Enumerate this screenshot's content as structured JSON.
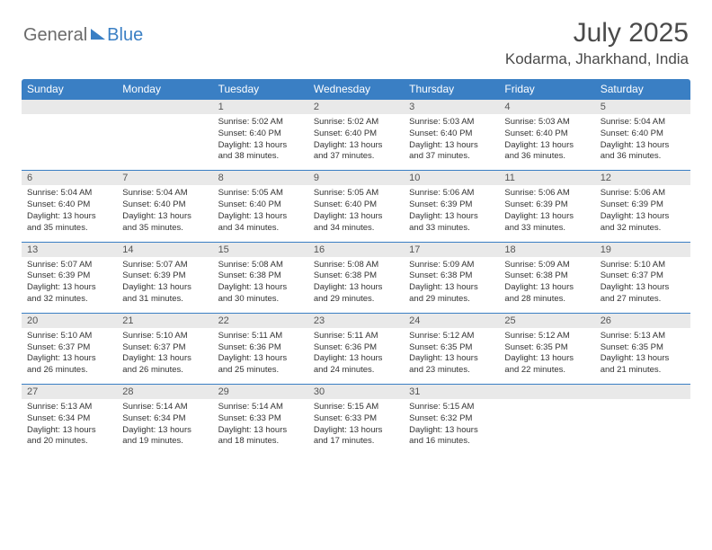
{
  "brand": {
    "part1": "General",
    "part2": "Blue"
  },
  "title": "July 2025",
  "location": "Kodarma, Jharkhand, India",
  "colors": {
    "header_bg": "#3a7fc4",
    "daynum_bg": "#e9e9e9",
    "border": "#3a7fc4",
    "text": "#333333",
    "title_text": "#4a4a4a",
    "logo_gray": "#6b6b6b"
  },
  "weekdays": [
    "Sunday",
    "Monday",
    "Tuesday",
    "Wednesday",
    "Thursday",
    "Friday",
    "Saturday"
  ],
  "weeks": [
    [
      null,
      null,
      {
        "d": "1",
        "sr": "5:02 AM",
        "ss": "6:40 PM",
        "dl": "13 hours and 38 minutes."
      },
      {
        "d": "2",
        "sr": "5:02 AM",
        "ss": "6:40 PM",
        "dl": "13 hours and 37 minutes."
      },
      {
        "d": "3",
        "sr": "5:03 AM",
        "ss": "6:40 PM",
        "dl": "13 hours and 37 minutes."
      },
      {
        "d": "4",
        "sr": "5:03 AM",
        "ss": "6:40 PM",
        "dl": "13 hours and 36 minutes."
      },
      {
        "d": "5",
        "sr": "5:04 AM",
        "ss": "6:40 PM",
        "dl": "13 hours and 36 minutes."
      }
    ],
    [
      {
        "d": "6",
        "sr": "5:04 AM",
        "ss": "6:40 PM",
        "dl": "13 hours and 35 minutes."
      },
      {
        "d": "7",
        "sr": "5:04 AM",
        "ss": "6:40 PM",
        "dl": "13 hours and 35 minutes."
      },
      {
        "d": "8",
        "sr": "5:05 AM",
        "ss": "6:40 PM",
        "dl": "13 hours and 34 minutes."
      },
      {
        "d": "9",
        "sr": "5:05 AM",
        "ss": "6:40 PM",
        "dl": "13 hours and 34 minutes."
      },
      {
        "d": "10",
        "sr": "5:06 AM",
        "ss": "6:39 PM",
        "dl": "13 hours and 33 minutes."
      },
      {
        "d": "11",
        "sr": "5:06 AM",
        "ss": "6:39 PM",
        "dl": "13 hours and 33 minutes."
      },
      {
        "d": "12",
        "sr": "5:06 AM",
        "ss": "6:39 PM",
        "dl": "13 hours and 32 minutes."
      }
    ],
    [
      {
        "d": "13",
        "sr": "5:07 AM",
        "ss": "6:39 PM",
        "dl": "13 hours and 32 minutes."
      },
      {
        "d": "14",
        "sr": "5:07 AM",
        "ss": "6:39 PM",
        "dl": "13 hours and 31 minutes."
      },
      {
        "d": "15",
        "sr": "5:08 AM",
        "ss": "6:38 PM",
        "dl": "13 hours and 30 minutes."
      },
      {
        "d": "16",
        "sr": "5:08 AM",
        "ss": "6:38 PM",
        "dl": "13 hours and 29 minutes."
      },
      {
        "d": "17",
        "sr": "5:09 AM",
        "ss": "6:38 PM",
        "dl": "13 hours and 29 minutes."
      },
      {
        "d": "18",
        "sr": "5:09 AM",
        "ss": "6:38 PM",
        "dl": "13 hours and 28 minutes."
      },
      {
        "d": "19",
        "sr": "5:10 AM",
        "ss": "6:37 PM",
        "dl": "13 hours and 27 minutes."
      }
    ],
    [
      {
        "d": "20",
        "sr": "5:10 AM",
        "ss": "6:37 PM",
        "dl": "13 hours and 26 minutes."
      },
      {
        "d": "21",
        "sr": "5:10 AM",
        "ss": "6:37 PM",
        "dl": "13 hours and 26 minutes."
      },
      {
        "d": "22",
        "sr": "5:11 AM",
        "ss": "6:36 PM",
        "dl": "13 hours and 25 minutes."
      },
      {
        "d": "23",
        "sr": "5:11 AM",
        "ss": "6:36 PM",
        "dl": "13 hours and 24 minutes."
      },
      {
        "d": "24",
        "sr": "5:12 AM",
        "ss": "6:35 PM",
        "dl": "13 hours and 23 minutes."
      },
      {
        "d": "25",
        "sr": "5:12 AM",
        "ss": "6:35 PM",
        "dl": "13 hours and 22 minutes."
      },
      {
        "d": "26",
        "sr": "5:13 AM",
        "ss": "6:35 PM",
        "dl": "13 hours and 21 minutes."
      }
    ],
    [
      {
        "d": "27",
        "sr": "5:13 AM",
        "ss": "6:34 PM",
        "dl": "13 hours and 20 minutes."
      },
      {
        "d": "28",
        "sr": "5:14 AM",
        "ss": "6:34 PM",
        "dl": "13 hours and 19 minutes."
      },
      {
        "d": "29",
        "sr": "5:14 AM",
        "ss": "6:33 PM",
        "dl": "13 hours and 18 minutes."
      },
      {
        "d": "30",
        "sr": "5:15 AM",
        "ss": "6:33 PM",
        "dl": "13 hours and 17 minutes."
      },
      {
        "d": "31",
        "sr": "5:15 AM",
        "ss": "6:32 PM",
        "dl": "13 hours and 16 minutes."
      },
      null,
      null
    ]
  ],
  "labels": {
    "sunrise": "Sunrise:",
    "sunset": "Sunset:",
    "daylight": "Daylight:"
  }
}
